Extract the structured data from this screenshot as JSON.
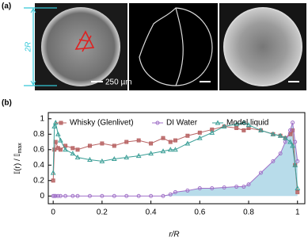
{
  "panel_a": {
    "label": "(a)",
    "diameter_label": "2R",
    "scale_label": "250 µm"
  },
  "chart_data": {
    "type": "line",
    "panel_label": "(b)",
    "x_label": "r/R",
    "y_label_main": "𝕀(r) / 𝕀",
    "y_label_sub": "max",
    "x": [
      0,
      0.005,
      0.01,
      0.02,
      0.03,
      0.05,
      0.08,
      0.1,
      0.15,
      0.2,
      0.25,
      0.3,
      0.35,
      0.4,
      0.45,
      0.48,
      0.5,
      0.55,
      0.6,
      0.65,
      0.7,
      0.75,
      0.78,
      0.8,
      0.85,
      0.9,
      0.93,
      0.95,
      0.97,
      0.98,
      0.99,
      1.0
    ],
    "series": [
      {
        "name": "Whisky (Glenlivet)",
        "color": "#b86464",
        "marker": "square",
        "values": [
          0.2,
          0.6,
          0.7,
          0.62,
          0.6,
          0.65,
          0.62,
          0.6,
          0.65,
          0.68,
          0.65,
          0.7,
          0.72,
          0.68,
          0.75,
          0.7,
          0.72,
          0.78,
          0.82,
          0.86,
          0.9,
          0.88,
          0.85,
          0.88,
          0.85,
          0.8,
          0.78,
          0.75,
          0.8,
          0.85,
          0.4,
          0.05
        ]
      },
      {
        "name": "DI Water",
        "color": "#a070c8",
        "marker": "circle",
        "fill_color": "#b8dcea",
        "values": [
          0,
          0,
          0,
          0,
          0,
          0,
          0,
          0,
          0,
          0,
          0,
          0,
          0,
          0,
          0,
          0.02,
          0.05,
          0.07,
          0.1,
          0.1,
          0.11,
          0.12,
          0.12,
          0.15,
          0.3,
          0.45,
          0.55,
          0.7,
          0.85,
          0.95,
          0.7,
          0.45
        ]
      },
      {
        "name": "Model liquid",
        "color": "#3a9e96",
        "marker": "triangle",
        "values": [
          0.3,
          0.9,
          0.95,
          0.8,
          0.72,
          0.6,
          0.55,
          0.5,
          0.47,
          0.45,
          0.48,
          0.5,
          0.52,
          0.55,
          0.58,
          0.6,
          0.6,
          0.68,
          0.75,
          0.82,
          0.9,
          0.93,
          0.95,
          0.92,
          0.85,
          0.8,
          0.78,
          0.75,
          0.7,
          0.65,
          0.4,
          0.1
        ]
      }
    ],
    "xlim": [
      -0.02,
      1.03
    ],
    "ylim": [
      -0.1,
      1.08
    ],
    "xticks": [
      0,
      0.2,
      0.4,
      0.6,
      0.8,
      1
    ],
    "yticks": [
      0,
      0.2,
      0.4,
      0.6,
      0.8,
      1
    ]
  }
}
